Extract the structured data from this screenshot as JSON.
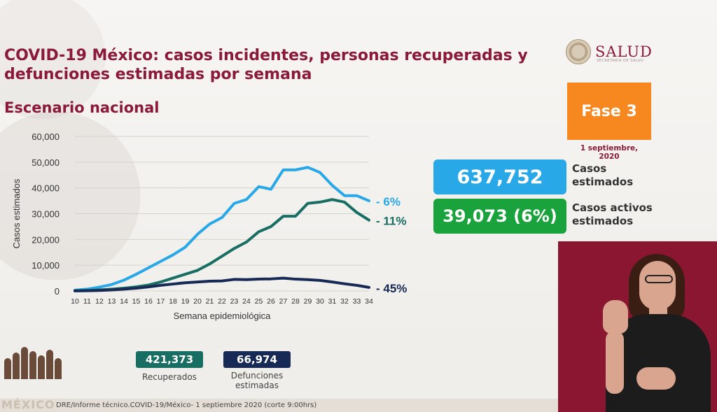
{
  "title": "COVID-19 México: casos incidentes, personas recuperadas y defunciones estimadas por semana",
  "subtitle": "Escenario nacional",
  "logo": {
    "text": "SALUD",
    "small": "SECRETARÍA DE SALUD"
  },
  "fase": "Fase 3",
  "fecha": "1 septiembre, 2020",
  "casos_estimados": {
    "value": "637,752",
    "label": "Casos estimados"
  },
  "casos_activos": {
    "value": "39,073 (6%)",
    "label": "Casos activos estimados"
  },
  "recuperados": {
    "value": "421,373",
    "label": "Recuperados"
  },
  "defunciones": {
    "value": "66,974",
    "label": "Defunciones estimadas"
  },
  "footer": {
    "source": "DRE/Informe técnico.COVID-19/México- 1 septiembre 2020 (corte 9:00hrs)",
    "logo": "MÉXICO"
  },
  "colors": {
    "casos": "#29a8e8",
    "recuperados": "#186e63",
    "defunciones": "#172a55",
    "accent": "#8b1a3a"
  },
  "chart_data": {
    "type": "line",
    "xlabel": "Semana epidemiológica",
    "ylabel": "Casos estimados",
    "x": [
      10,
      11,
      12,
      13,
      14,
      15,
      16,
      17,
      18,
      19,
      20,
      21,
      22,
      23,
      24,
      25,
      26,
      27,
      28,
      29,
      30,
      31,
      32,
      33,
      34
    ],
    "ylim": [
      0,
      60000
    ],
    "yticks": [
      "0",
      "10,000",
      "20,000",
      "30,000",
      "40,000",
      "50,000",
      "60,000"
    ],
    "grid": true,
    "series": [
      {
        "values": [
          300,
          700,
          1500,
          2500,
          4200,
          6500,
          9000,
          11500,
          14000,
          17000,
          22000,
          26000,
          28500,
          34000,
          35500,
          40500,
          39500,
          47000,
          47000,
          48000,
          46000,
          41000,
          37000,
          37000,
          35000
        ],
        "end_label": "- 6%"
      },
      {
        "values": [
          100,
          200,
          400,
          700,
          1100,
          1600,
          2300,
          3500,
          5000,
          6500,
          8000,
          10500,
          13500,
          16500,
          19000,
          23000,
          25000,
          29000,
          29000,
          34000,
          34500,
          35500,
          34500,
          30500,
          27500
        ],
        "end_label": "- 11%"
      },
      {
        "values": [
          50,
          100,
          200,
          400,
          700,
          1100,
          1600,
          2200,
          2700,
          3200,
          3500,
          3800,
          3900,
          4500,
          4400,
          4600,
          4700,
          5000,
          4600,
          4400,
          4100,
          3500,
          2800,
          2200,
          1400
        ],
        "end_label": "- 45%"
      }
    ]
  }
}
